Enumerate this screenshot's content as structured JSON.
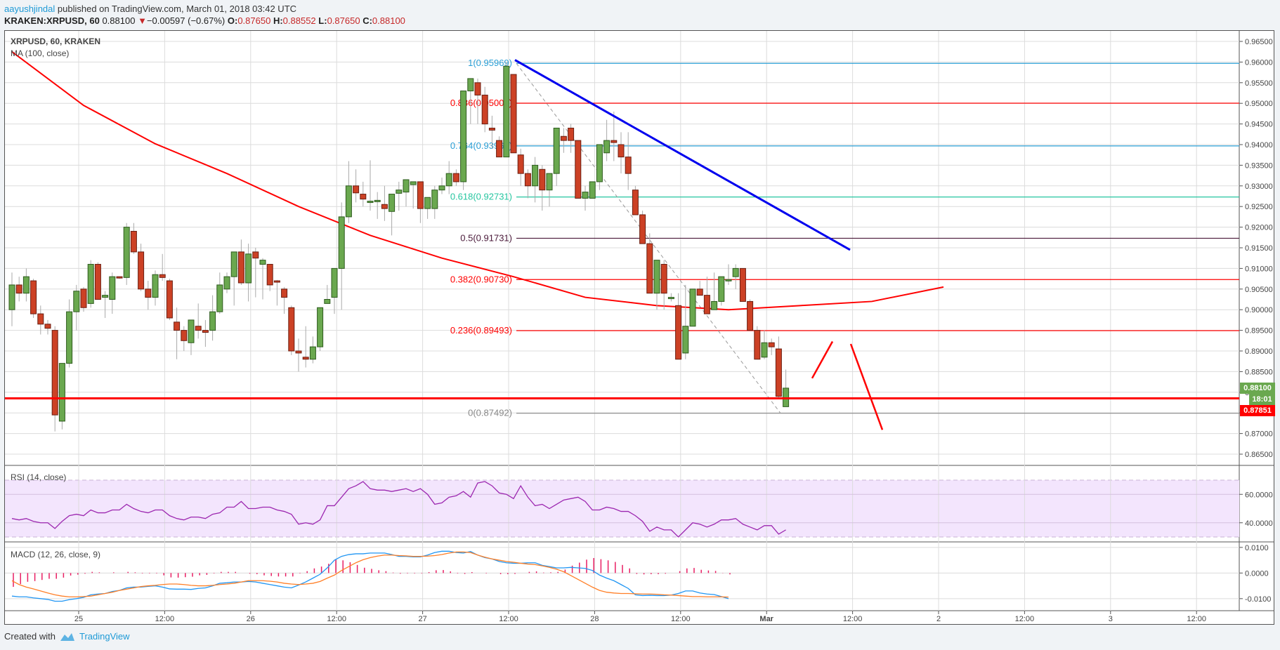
{
  "header": {
    "author": "aayushjindal",
    "published_text": " published on TradingView.com, March 01, 2018 03:42 UTC",
    "symbol": "KRAKEN:XRPUSD, 60",
    "last": "0.88100",
    "change": "−0.00597 (−0.67%)",
    "o_label": "O:",
    "o": "0.87650",
    "h_label": "H:",
    "h": "0.88552",
    "l_label": "L:",
    "l": "0.87650",
    "c_label": "C:",
    "c": "0.88100"
  },
  "legend": {
    "title": "XRPUSD, 60, KRAKEN",
    "ma": "MA (100, close)",
    "rsi": "RSI (14, close)",
    "macd": "MACD (12, 26, close, 9)"
  },
  "price_tags": {
    "last": "0.88100",
    "countdown": "18:01",
    "support": "0.87851",
    "last_color": "#6aa84f",
    "support_color": "#ff0000"
  },
  "footer": {
    "created_with": "Created with",
    "brand": "TradingView"
  },
  "colors": {
    "up": "#6aa84f",
    "down": "#cc4125",
    "ma": "#ff0000",
    "trendline": "#0000ee",
    "rsi_line": "#9c27b0",
    "rsi_band": "#f3e5fd",
    "macd_line": "#2196f3",
    "signal_line": "#ff7f27",
    "histogram": "#e91e63"
  },
  "chart_data": [
    {
      "type": "candlestick",
      "title": "XRPUSD, 60, KRAKEN",
      "symbol": "KRAKEN:XRPUSD",
      "interval": "60",
      "x_ticks": [
        "25",
        "12:00",
        "26",
        "12:00",
        "27",
        "12:00",
        "28",
        "12:00",
        "Mar",
        "12:00",
        "2",
        "12:00",
        "3",
        "12:00"
      ],
      "y_ticks": [
        "0.96500",
        "0.96000",
        "0.95500",
        "0.95000",
        "0.94500",
        "0.94000",
        "0.93500",
        "0.93000",
        "0.92500",
        "0.92000",
        "0.91500",
        "0.91000",
        "0.90500",
        "0.90000",
        "0.89500",
        "0.89000",
        "0.88500",
        "0.88000",
        "0.87500",
        "0.87000",
        "0.86500"
      ],
      "ylim": [
        0.8625,
        0.9675
      ],
      "candles_ohlc": [
        [
          0.9,
          0.909,
          0.896,
          0.906
        ],
        [
          0.906,
          0.908,
          0.902,
          0.904
        ],
        [
          0.904,
          0.91,
          0.902,
          0.908
        ],
        [
          0.907,
          0.9075,
          0.898,
          0.899
        ],
        [
          0.899,
          0.901,
          0.894,
          0.8965
        ],
        [
          0.8965,
          0.8975,
          0.894,
          0.8955
        ],
        [
          0.895,
          0.896,
          0.8705,
          0.8745
        ],
        [
          0.873,
          0.887,
          0.871,
          0.887
        ],
        [
          0.887,
          0.9025,
          0.886,
          0.8995
        ],
        [
          0.8995,
          0.906,
          0.895,
          0.9045
        ],
        [
          0.905,
          0.9055,
          0.8995,
          0.9005
        ],
        [
          0.9015,
          0.912,
          0.9005,
          0.911
        ],
        [
          0.911,
          0.9115,
          0.9025,
          0.9025
        ],
        [
          0.903,
          0.9045,
          0.898,
          0.9035
        ],
        [
          0.9025,
          0.909,
          0.899,
          0.908
        ],
        [
          0.908,
          0.908,
          0.9075,
          0.9078
        ],
        [
          0.9078,
          0.921,
          0.906,
          0.92
        ],
        [
          0.919,
          0.921,
          0.9135,
          0.914
        ],
        [
          0.914,
          0.916,
          0.9045,
          0.905
        ],
        [
          0.905,
          0.907,
          0.9,
          0.903
        ],
        [
          0.903,
          0.9095,
          0.901,
          0.9085
        ],
        [
          0.9085,
          0.9135,
          0.907,
          0.9078
        ],
        [
          0.907,
          0.9075,
          0.8975,
          0.898
        ],
        [
          0.897,
          0.9005,
          0.888,
          0.895
        ],
        [
          0.895,
          0.896,
          0.89,
          0.8925
        ],
        [
          0.892,
          0.8975,
          0.889,
          0.8975
        ],
        [
          0.896,
          0.9015,
          0.893,
          0.895
        ],
        [
          0.895,
          0.8975,
          0.891,
          0.8945
        ],
        [
          0.895,
          0.9035,
          0.8925,
          0.8995
        ],
        [
          0.8995,
          0.909,
          0.899,
          0.906
        ],
        [
          0.905,
          0.909,
          0.904,
          0.908
        ],
        [
          0.908,
          0.914,
          0.901,
          0.914
        ],
        [
          0.914,
          0.917,
          0.906,
          0.9065
        ],
        [
          0.9065,
          0.916,
          0.902,
          0.9135
        ],
        [
          0.914,
          0.915,
          0.903,
          0.9125
        ],
        [
          0.911,
          0.9125,
          0.9025,
          0.912
        ],
        [
          0.911,
          0.911,
          0.9045,
          0.906
        ],
        [
          0.907,
          0.9072,
          0.901,
          0.9069
        ],
        [
          0.905,
          0.9055,
          0.899,
          0.903
        ],
        [
          0.9005,
          0.901,
          0.889,
          0.89
        ],
        [
          0.89,
          0.893,
          0.885,
          0.8895
        ],
        [
          0.8885,
          0.896,
          0.886,
          0.888
        ],
        [
          0.888,
          0.8935,
          0.887,
          0.891
        ],
        [
          0.891,
          0.9005,
          0.89,
          0.9005
        ],
        [
          0.9015,
          0.906,
          0.902,
          0.9025
        ],
        [
          0.903,
          0.909,
          0.899,
          0.91
        ],
        [
          0.91,
          0.926,
          0.9,
          0.9225
        ],
        [
          0.9225,
          0.936,
          0.921,
          0.93
        ],
        [
          0.93,
          0.934,
          0.926,
          0.9283
        ],
        [
          0.928,
          0.931,
          0.925,
          0.9268
        ],
        [
          0.9263,
          0.9362,
          0.924,
          0.9263
        ],
        [
          0.9263,
          0.9285,
          0.922,
          0.9265
        ],
        [
          0.9255,
          0.93,
          0.9215,
          0.9245
        ],
        [
          0.9238,
          0.927,
          0.918,
          0.928
        ],
        [
          0.9282,
          0.931,
          0.924,
          0.929
        ],
        [
          0.9285,
          0.931,
          0.925,
          0.9315
        ],
        [
          0.9303,
          0.931,
          0.9245,
          0.931
        ],
        [
          0.931,
          0.931,
          0.921,
          0.9245
        ],
        [
          0.9245,
          0.9265,
          0.922,
          0.9272
        ],
        [
          0.9245,
          0.93,
          0.922,
          0.929
        ],
        [
          0.929,
          0.932,
          0.928,
          0.93
        ],
        [
          0.93,
          0.936,
          0.928,
          0.933
        ],
        [
          0.933,
          0.934,
          0.93,
          0.931
        ],
        [
          0.931,
          0.944,
          0.929,
          0.953
        ],
        [
          0.953,
          0.955,
          0.945,
          0.956
        ],
        [
          0.955,
          0.956,
          0.945,
          0.952
        ],
        [
          0.952,
          0.954,
          0.943,
          0.945
        ],
        [
          0.944,
          0.947,
          0.939,
          0.9435
        ],
        [
          0.941,
          0.942,
          0.9385,
          0.937
        ],
        [
          0.937,
          0.96,
          0.937,
          0.959
        ],
        [
          0.957,
          0.957,
          0.938,
          0.938
        ],
        [
          0.9375,
          0.939,
          0.93,
          0.933
        ],
        [
          0.933,
          0.934,
          0.927,
          0.93
        ],
        [
          0.93,
          0.937,
          0.926,
          0.935
        ],
        [
          0.934,
          0.935,
          0.924,
          0.929
        ],
        [
          0.929,
          0.933,
          0.925,
          0.933
        ],
        [
          0.933,
          0.94,
          0.93,
          0.944
        ],
        [
          0.942,
          0.944,
          0.938,
          0.941
        ],
        [
          0.944,
          0.945,
          0.938,
          0.941
        ],
        [
          0.941,
          0.941,
          0.927,
          0.927
        ],
        [
          0.927,
          0.93,
          0.924,
          0.9285
        ],
        [
          0.927,
          0.93,
          0.928,
          0.931
        ],
        [
          0.931,
          0.94,
          0.929,
          0.94
        ],
        [
          0.938,
          0.946,
          0.936,
          0.941
        ],
        [
          0.941,
          0.948,
          0.936,
          0.9405
        ],
        [
          0.94,
          0.943,
          0.933,
          0.937
        ],
        [
          0.937,
          0.943,
          0.929,
          0.933
        ],
        [
          0.929,
          0.93,
          0.923,
          0.923
        ],
        [
          0.923,
          0.924,
          0.916,
          0.916
        ],
        [
          0.916,
          0.9185,
          0.904,
          0.904
        ],
        [
          0.904,
          0.912,
          0.9,
          0.912
        ],
        [
          0.911,
          0.912,
          0.9,
          0.904
        ],
        [
          0.903,
          0.904,
          0.902,
          0.903
        ],
        [
          0.901,
          0.904,
          0.888,
          0.888
        ],
        [
          0.8895,
          0.906,
          0.888,
          0.896
        ],
        [
          0.896,
          0.903,
          0.899,
          0.905
        ],
        [
          0.905,
          0.907,
          0.904,
          0.9035
        ],
        [
          0.9035,
          0.908,
          0.899,
          0.899
        ],
        [
          0.9,
          0.909,
          0.901,
          0.902
        ],
        [
          0.902,
          0.908,
          0.901,
          0.908
        ],
        [
          0.9072,
          0.911,
          0.906,
          0.9073
        ],
        [
          0.908,
          0.911,
          0.905,
          0.91
        ],
        [
          0.91,
          0.91,
          0.902,
          0.902
        ],
        [
          0.902,
          0.9025,
          0.895,
          0.895
        ],
        [
          0.895,
          0.896,
          0.89,
          0.888
        ],
        [
          0.8885,
          0.895,
          0.888,
          0.892
        ],
        [
          0.892,
          0.893,
          0.889,
          0.891
        ],
        [
          0.8905,
          0.8935,
          0.8785,
          0.879
        ],
        [
          0.8765,
          0.8855,
          0.8765,
          0.881
        ]
      ],
      "moving_average": {
        "name": "MA (100, close)",
        "points": [
          [
            0,
            0.9625
          ],
          [
            10,
            0.9495
          ],
          [
            20,
            0.9402
          ],
          [
            30,
            0.933
          ],
          [
            40,
            0.925
          ],
          [
            50,
            0.918
          ],
          [
            60,
            0.9125
          ],
          [
            70,
            0.908
          ],
          [
            80,
            0.903
          ],
          [
            90,
            0.901
          ],
          [
            100,
            0.9
          ],
          [
            110,
            0.901
          ],
          [
            120,
            0.902
          ],
          [
            130,
            0.9055
          ]
        ]
      },
      "fibonacci_retracement": [
        {
          "level": "1",
          "price": 0.95969,
          "label": "1(0.95969)",
          "color": "#2a9fd6"
        },
        {
          "level": "0.886",
          "price": 0.95003,
          "label": "0.886(0.95003)",
          "color": "#ff0000"
        },
        {
          "level": "0.764",
          "price": 0.93968,
          "label": "0.764(0.93968)",
          "color": "#2a9fd6"
        },
        {
          "level": "0.618",
          "price": 0.92731,
          "label": "0.618(0.92731)",
          "color": "#26c6a0"
        },
        {
          "level": "0.5",
          "price": 0.91731,
          "label": "0.5(0.91731)",
          "color": "#4a1a3a"
        },
        {
          "level": "0.382",
          "price": 0.9073,
          "label": "0.382(0.90730)",
          "color": "#ff0000"
        },
        {
          "level": "0.236",
          "price": 0.89493,
          "label": "0.236(0.89493)",
          "color": "#ff0000"
        },
        {
          "level": "0",
          "price": 0.87492,
          "label": "0(0.87492)",
          "color": "#888888"
        }
      ],
      "annotations": {
        "bearish_trendline": {
          "from": [
            0.9605,
            "Feb 27 ~12:00"
          ],
          "to": [
            0.9145,
            "Mar 1 ~12:00"
          ],
          "color": "#0000ee"
        },
        "support_line": {
          "price": 0.87851,
          "color": "#ff0000"
        },
        "projection_up": {
          "from": 0.8834,
          "to": 0.8923
        },
        "projection_down": {
          "from": 0.8917,
          "to": 0.8709
        }
      },
      "last_price": 0.881,
      "countdown": "18:01"
    },
    {
      "type": "line",
      "title": "RSI (14, close)",
      "y_ticks": [
        "60.0000",
        "40.0000"
      ],
      "bands": [
        30,
        70
      ],
      "ylim": [
        25,
        75
      ],
      "values": [
        43,
        42,
        43,
        41,
        40,
        40,
        36,
        41,
        45,
        46,
        45,
        49,
        47,
        47,
        49,
        49,
        53,
        50,
        48,
        47,
        49,
        49,
        45,
        43,
        42,
        44,
        44,
        43,
        46,
        47,
        51,
        51,
        55,
        50,
        50,
        51,
        51,
        49,
        48,
        46,
        39,
        40,
        39,
        42,
        52,
        52,
        58,
        64,
        66,
        69,
        64,
        63,
        63,
        62,
        63,
        64,
        62,
        64,
        60,
        53,
        54,
        58,
        59,
        62,
        58,
        68,
        69,
        66,
        61,
        60,
        57,
        66,
        58,
        52,
        53,
        50,
        53,
        56,
        57,
        58,
        55,
        49,
        49,
        51,
        50,
        48,
        48,
        45,
        41,
        34,
        37,
        35,
        35,
        30,
        35,
        40,
        39,
        37,
        39,
        42,
        42,
        43,
        39,
        37,
        35,
        38,
        38,
        32,
        35
      ]
    },
    {
      "type": "line",
      "title": "MACD (12, 26, close, 9)",
      "y_ticks": [
        "0.0100",
        "0.0000",
        "-0.0100"
      ],
      "ylim": [
        -0.013,
        0.0115
      ],
      "macd": [
        -0.009,
        -0.0093,
        -0.0093,
        -0.0097,
        -0.01,
        -0.0103,
        -0.011,
        -0.011,
        -0.0104,
        -0.01,
        -0.0095,
        -0.0085,
        -0.0082,
        -0.008,
        -0.0072,
        -0.0068,
        -0.0058,
        -0.0055,
        -0.0055,
        -0.0052,
        -0.005,
        -0.0055,
        -0.0062,
        -0.0063,
        -0.0063,
        -0.0064,
        -0.006,
        -0.0058,
        -0.005,
        -0.004,
        -0.0038,
        -0.0035,
        -0.0035,
        -0.0033,
        -0.0035,
        -0.004,
        -0.0045,
        -0.005,
        -0.0055,
        -0.0058,
        -0.0047,
        -0.0035,
        -0.002,
        -0.0005,
        0.002,
        0.005,
        0.0065,
        0.0072,
        0.0075,
        0.0075,
        0.0078,
        0.0078,
        0.0078,
        0.0072,
        0.0065,
        0.0065,
        0.0063,
        0.0063,
        0.007,
        0.008,
        0.0085,
        0.0085,
        0.008,
        0.0078,
        0.0084,
        0.007,
        0.006,
        0.0055,
        0.0045,
        0.004,
        0.0038,
        0.0038,
        0.004,
        0.004,
        0.003,
        0.0025,
        0.002,
        0.002,
        0.0022,
        0.002,
        0.0018,
        0.001,
        -0.0008,
        -0.002,
        -0.003,
        -0.0045,
        -0.006,
        -0.0085,
        -0.0088,
        -0.0087,
        -0.0088,
        -0.0088,
        -0.0086,
        -0.008,
        -0.007,
        -0.007,
        -0.0078,
        -0.0082,
        -0.0084,
        -0.0092,
        -0.01
      ],
      "signal": [
        -0.003,
        -0.0045,
        -0.0055,
        -0.0062,
        -0.007,
        -0.0078,
        -0.0085,
        -0.009,
        -0.0093,
        -0.0093,
        -0.0092,
        -0.009,
        -0.0085,
        -0.008,
        -0.0075,
        -0.0068,
        -0.0063,
        -0.0058,
        -0.0053,
        -0.005,
        -0.0048,
        -0.0045,
        -0.0043,
        -0.0043,
        -0.0045,
        -0.0048,
        -0.005,
        -0.005,
        -0.0048,
        -0.0045,
        -0.0043,
        -0.004,
        -0.0035,
        -0.003,
        -0.003,
        -0.003,
        -0.0032,
        -0.0035,
        -0.004,
        -0.0043,
        -0.0045,
        -0.0043,
        -0.004,
        -0.0033,
        -0.002,
        -0.0008,
        0.001,
        0.0025,
        0.004,
        0.0052,
        0.006,
        0.0066,
        0.007,
        0.007,
        0.0068,
        0.0067,
        0.0065,
        0.0065,
        0.0066,
        0.0068,
        0.0072,
        0.0078,
        0.0082,
        0.0082,
        0.008,
        0.007,
        0.0062,
        0.0055,
        0.005,
        0.0045,
        0.0042,
        0.0038,
        0.0035,
        0.0033,
        0.0028,
        0.0022,
        0.0015,
        0.0005,
        -0.001,
        -0.0025,
        -0.004,
        -0.0055,
        -0.0068,
        -0.0075,
        -0.0078,
        -0.008,
        -0.008,
        -0.0081,
        -0.0082,
        -0.0082,
        -0.0083,
        -0.0085,
        -0.0086,
        -0.0088,
        -0.009,
        -0.0092,
        -0.0092,
        -0.0093,
        -0.0093,
        -0.0093,
        -0.0094
      ]
    }
  ]
}
